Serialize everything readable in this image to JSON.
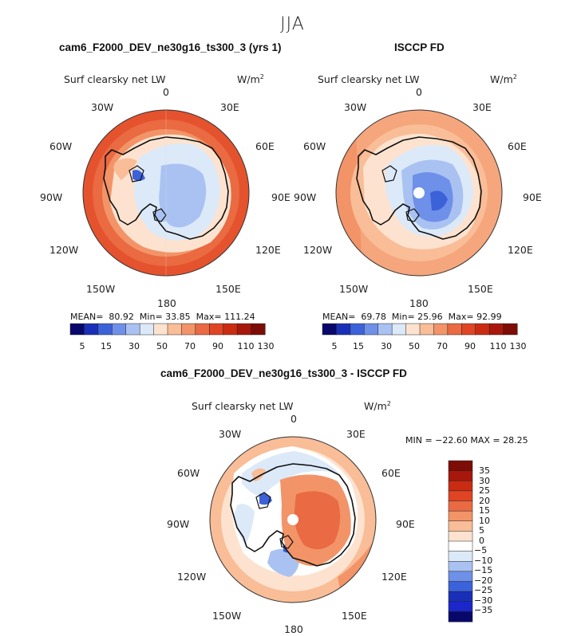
{
  "season": "JJA",
  "panels": [
    {
      "id": "model",
      "title": "cam6_F2000_DEV_ne30g16_ts300_3 (yrs 1)",
      "variable": "Surf clearsky net LW",
      "units": "W/m",
      "units_exp": "2",
      "stats": {
        "mean_label": "MEAN=",
        "mean": "80.92",
        "min_label": "Min=",
        "min": "33.85",
        "max_label": "Max=",
        "max": "111.24"
      },
      "colorbar_ticks": [
        "5",
        "15",
        "30",
        "50",
        "70",
        "90",
        "110",
        "130"
      ]
    },
    {
      "id": "obs",
      "title": "ISCCP FD",
      "variable": "Surf clearsky net LW",
      "units": "W/m",
      "units_exp": "2",
      "stats": {
        "mean_label": "MEAN=",
        "mean": "69.78",
        "min_label": "Min=",
        "min": "25.96",
        "max_label": "Max=",
        "max": "92.99"
      },
      "colorbar_ticks": [
        "5",
        "15",
        "30",
        "50",
        "70",
        "90",
        "110",
        "130"
      ]
    },
    {
      "id": "diff",
      "title": "cam6_F2000_DEV_ne30g16_ts300_3 - ISCCP FD",
      "variable": "Surf clearsky net LW",
      "units": "W/m",
      "units_exp": "2",
      "stats_line": "MIN = −22.60 MAX =  28.25",
      "colorbar_labels": [
        "35",
        "30",
        "25",
        "20",
        "15",
        "10",
        "5",
        "0",
        "−5",
        "−10",
        "−15",
        "−20",
        "−25",
        "−30",
        "−35"
      ]
    }
  ],
  "longitude_labels": [
    "0",
    "30E",
    "60E",
    "90E",
    "120E",
    "150E",
    "180",
    "150W",
    "120W",
    "90W",
    "60W",
    "30W"
  ],
  "colors": {
    "abs_scale": [
      "#08086b",
      "#1a2fb8",
      "#3b62d8",
      "#6f90e8",
      "#a9c2f2",
      "#dce9f8",
      "#fde3cf",
      "#f9bd97",
      "#f29468",
      "#e96a43",
      "#df4424",
      "#c92c12",
      "#a8170b",
      "#7c0c05"
    ],
    "diff_scale": [
      "#7c0c05",
      "#a8170b",
      "#c92c12",
      "#df4424",
      "#e96a43",
      "#f29468",
      "#f9bd97",
      "#fde3cf",
      "#ffffff",
      "#dce9f8",
      "#a9c2f2",
      "#6f90e8",
      "#3b62d8",
      "#1a2fb8",
      "#1b27c9",
      "#08086b"
    ]
  }
}
